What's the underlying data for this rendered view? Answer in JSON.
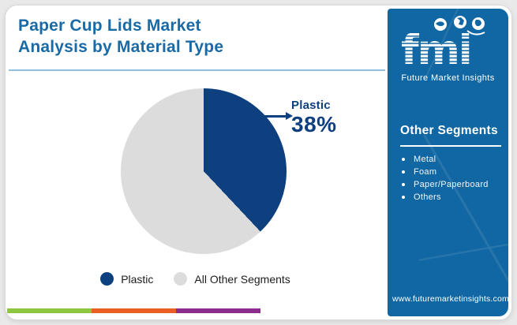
{
  "title": "Paper Cup Lids Market\nAnalysis by Material Type",
  "chart_data": {
    "type": "pie",
    "title": "Paper Cup Lids Market Analysis by Material Type",
    "slices": [
      {
        "label": "Plastic",
        "value": 38,
        "color": "#0e3f7e"
      },
      {
        "label": "All Other Segments",
        "value": 62,
        "color": "#dcdcdc"
      }
    ],
    "start_angle": "top",
    "direction": "clockwise",
    "annotation": {
      "label": "Plastic",
      "value": "38%"
    },
    "legend_position": "bottom"
  },
  "callout": {
    "label": "Plastic",
    "value": "38%"
  },
  "legend": [
    {
      "label": "Plastic",
      "color": "#0e3f7e"
    },
    {
      "label": "All Other Segments",
      "color": "#dcdcdc"
    }
  ],
  "sidebar": {
    "logo": {
      "text": "fmi",
      "subtext": "Future Market Insights"
    },
    "other_segments": {
      "heading": "Other Segments",
      "items": [
        "Metal",
        "Foam",
        "Paper/Paperboard",
        "Others"
      ]
    },
    "website": "www.futuremarketinsights.com"
  },
  "colors": {
    "title": "#1a6aa6",
    "sidebar_bg": "#1167a3",
    "footer_bar": [
      "#8dc63f",
      "#e95f24",
      "#8c2d8d"
    ]
  }
}
